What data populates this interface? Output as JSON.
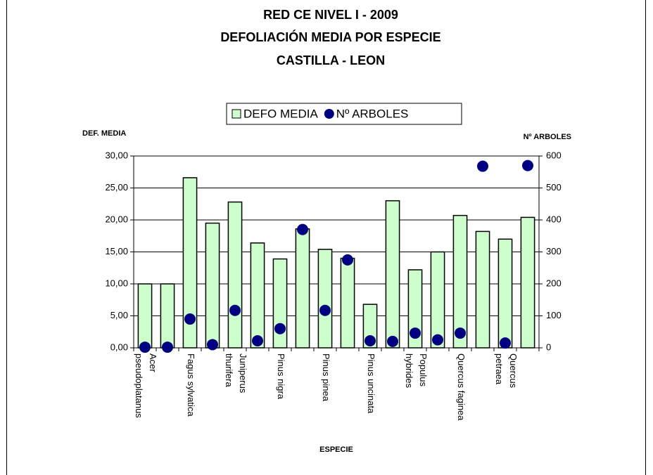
{
  "chart_data": {
    "type": "bar_dot",
    "title": [
      "RED CE NIVEL I - 2009",
      "DEFOLIACIÓN MEDIA POR ESPECIE",
      "CASTILLA - LEON"
    ],
    "x_label": "ESPECIE",
    "y_label": "DEF. MEDIA",
    "y2_label": "Nº ARBOLES",
    "categories": [
      "Acer\npseudoplatanus",
      null,
      "Fagus sylvatica",
      null,
      "Juniperus\nthurifera",
      null,
      "Pinus nigra",
      null,
      "Pinus pinea",
      null,
      "Pinus uncinata",
      null,
      "Populus\nhybrides",
      null,
      "Quercus faginea",
      null,
      "Quercus\npetraea",
      null
    ],
    "series": [
      {
        "name": "DEFO MEDIA",
        "color": "#ccffcc",
        "type": "bar",
        "values": [
          10.0,
          10.0,
          26.6,
          19.5,
          22.8,
          16.4,
          13.9,
          18.6,
          15.4,
          14.0,
          6.8,
          23.0,
          12.2,
          15.0,
          20.7,
          18.2,
          17.0,
          20.4
        ]
      },
      {
        "name": "Nº ARBOLES",
        "color": "#000080",
        "type": "dot",
        "axis": "y2",
        "values": [
          2,
          2,
          90,
          10,
          117,
          22,
          60,
          370,
          117,
          275,
          22,
          20,
          46,
          25,
          46,
          568,
          15,
          570
        ]
      }
    ],
    "ylim": [
      0,
      30
    ],
    "yticks": [
      {
        "value": 0,
        "label": "0,00"
      },
      {
        "value": 5,
        "label": "5,00"
      },
      {
        "value": 10,
        "label": "10,00"
      },
      {
        "value": 15,
        "label": "15,00"
      },
      {
        "value": 20,
        "label": "20,00"
      },
      {
        "value": 25,
        "label": "25,00"
      },
      {
        "value": 30,
        "label": "30,00"
      }
    ],
    "y2lim": [
      0,
      600
    ],
    "y2ticks": [
      0,
      100,
      200,
      300,
      400,
      500,
      600
    ],
    "grid": true,
    "legend": "top"
  }
}
